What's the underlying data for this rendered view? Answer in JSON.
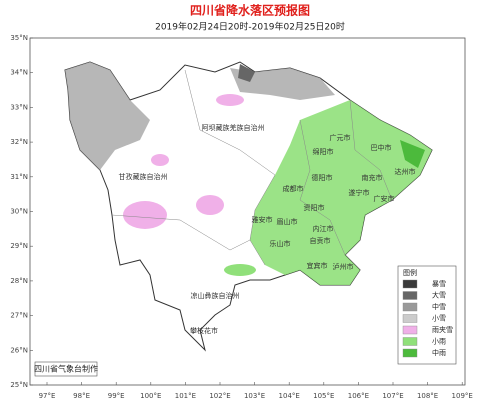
{
  "header": {
    "title": "四川省降水落区预报图",
    "subtitle": "2019年02月24日20时-2019年02月25日20时"
  },
  "lat_labels": [
    "35°N",
    "34°N",
    "33°N",
    "32°N",
    "31°N",
    "30°N",
    "29°N",
    "28°N",
    "27°N",
    "26°N",
    "25°N"
  ],
  "lon_labels": [
    "97°E",
    "98°E",
    "99°E",
    "100°E",
    "101°E",
    "102°E",
    "103°E",
    "104°E",
    "105°E",
    "106°E",
    "107°E",
    "108°E",
    "109°E"
  ],
  "regions": [
    "阿坝藏族羌族自治州",
    "广元市",
    "巴中市",
    "绵阳市",
    "德阳市",
    "南充市",
    "达州市",
    "甘孜藏族自治州",
    "成都市",
    "遂宁市",
    "广安市",
    "雅安市",
    "资阳市",
    "眉山市",
    "内江市",
    "乐山市",
    "自贡市",
    "宜宾市",
    "泸州市",
    "凉山彝族自治州",
    "攀枝花市"
  ],
  "legend": {
    "title": "图例",
    "items": [
      "暴雪",
      "大雪",
      "中雪",
      "小雪",
      "雨夹雪",
      "小雨",
      "中雨"
    ]
  },
  "credit": "四川省气象台制作"
}
